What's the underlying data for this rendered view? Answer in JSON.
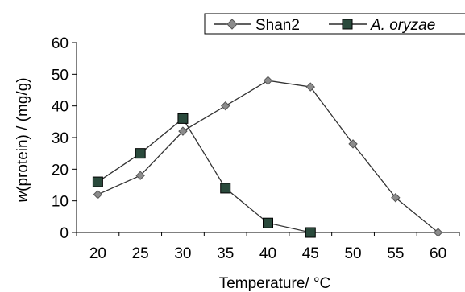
{
  "chart_data": {
    "type": "line",
    "x": [
      20,
      25,
      30,
      35,
      40,
      45,
      50,
      55,
      60
    ],
    "xlim": [
      20,
      60
    ],
    "ylim": [
      0,
      60
    ],
    "xticks": [
      20,
      25,
      30,
      35,
      40,
      45,
      50,
      55,
      60
    ],
    "yticks": [
      0,
      10,
      20,
      30,
      40,
      50,
      60
    ],
    "xlabel": "Temperature/ °C",
    "ylabel_italic": "w",
    "ylabel_rest": "(protein) / (mg/g)",
    "grid": false,
    "legend": "top-right",
    "series": [
      {
        "name": "Shan2",
        "marker": "diamond",
        "color": "#8c8c8c",
        "values": [
          12,
          18,
          32,
          40,
          48,
          46,
          28,
          11,
          0
        ]
      },
      {
        "name": "A. oryzae",
        "name_italic": true,
        "marker": "square",
        "color": "#2a4a3c",
        "values": [
          16,
          25,
          36,
          14,
          3,
          0,
          null,
          null,
          null
        ]
      }
    ]
  }
}
